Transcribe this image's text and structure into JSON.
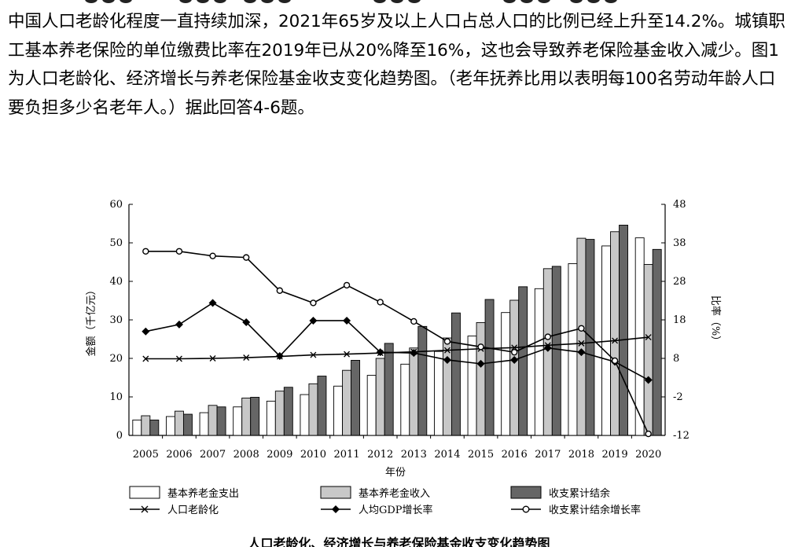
{
  "intro": {
    "paragraph_1": "中国人口老龄化程度一直持续加深，2021年65岁及以上人口占总人口的比例已经上升至14.2%。城镇职工基本养老保险的单位缴费比率在2019年已从20%降至16%，这也会导致养老保险基金收入减少。图1为人口老龄化、经济增长与养老保险基金收支变化趋势图。（老年抚养比用以表明每100名劳动年龄人口要负担多少名老年人。）据此回答4-6题。"
  },
  "caption": "人口老龄化、经济增长与养老保险基金收支变化趋势图",
  "chart_data": {
    "type": "bar",
    "title": "",
    "xlabel": "年份",
    "ylabel_left": "金额（千亿元）",
    "ylabel_right": "比率（%）",
    "ylim_left": [
      0,
      60
    ],
    "ylim_right": [
      -12,
      48
    ],
    "yticks_left": [
      "0",
      "10",
      "20",
      "30",
      "40",
      "50",
      "60"
    ],
    "yticks_right": [
      "-12",
      "-2",
      "8",
      "18",
      "28",
      "38",
      "48"
    ],
    "grid": false,
    "legend_position": "bottom",
    "categories": [
      "2005",
      "2006",
      "2007",
      "2008",
      "2009",
      "2010",
      "2011",
      "2012",
      "2013",
      "2014",
      "2015",
      "2016",
      "2017",
      "2018",
      "2019",
      "2020"
    ],
    "bar_series": [
      {
        "name": "基本养老金支出",
        "axis": "left",
        "color": "#ffffff",
        "values": [
          4.0,
          4.9,
          5.9,
          7.4,
          8.9,
          10.6,
          12.8,
          15.6,
          18.5,
          21.8,
          25.8,
          31.9,
          38.1,
          44.6,
          49.2,
          51.3
        ]
      },
      {
        "name": "基本养老金收入",
        "axis": "left",
        "color": "#c8c8c8",
        "values": [
          5.1,
          6.3,
          7.8,
          9.7,
          11.5,
          13.4,
          16.9,
          20.0,
          22.7,
          25.3,
          29.3,
          35.1,
          43.3,
          51.2,
          52.9,
          44.4
        ]
      },
      {
        "name": "收支累计结余",
        "axis": "left",
        "color": "#666666",
        "values": [
          4.0,
          5.5,
          7.4,
          9.9,
          12.5,
          15.4,
          19.5,
          23.9,
          28.3,
          31.8,
          35.3,
          38.6,
          43.9,
          50.9,
          54.6,
          48.3
        ]
      }
    ],
    "line_series": [
      {
        "name": "人口老龄化",
        "axis": "right",
        "marker": "x",
        "values": [
          7.9,
          7.9,
          8.0,
          8.2,
          8.5,
          8.9,
          9.1,
          9.4,
          9.7,
          10.1,
          10.5,
          10.8,
          11.4,
          11.9,
          12.6,
          13.5
        ]
      },
      {
        "name": "人均GDP增长率",
        "axis": "right",
        "marker": "diamond",
        "values": [
          15.0,
          16.8,
          22.4,
          17.4,
          8.6,
          17.8,
          17.8,
          9.6,
          9.4,
          7.6,
          6.6,
          7.6,
          10.7,
          9.6,
          7.1,
          2.4
        ]
      },
      {
        "name": "收支累计结余增长率",
        "axis": "right",
        "marker": "circle",
        "values": [
          35.8,
          35.8,
          34.6,
          34.2,
          25.6,
          22.4,
          27.0,
          22.6,
          17.6,
          12.4,
          11.0,
          9.6,
          13.6,
          15.8,
          7.4,
          -11.6
        ]
      }
    ]
  }
}
